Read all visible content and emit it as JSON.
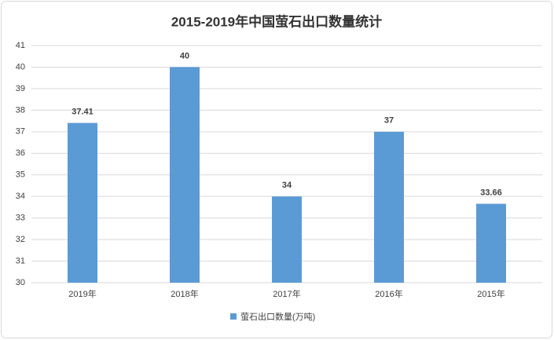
{
  "chart_data": {
    "type": "bar",
    "title": "2015-2019年中国萤石出口数量统计",
    "categories": [
      "2019年",
      "2018年",
      "2017年",
      "2016年",
      "2015年"
    ],
    "series": [
      {
        "name": "萤石出口数量(万吨)",
        "color": "#5b9bd5",
        "values": [
          37.41,
          40,
          34,
          37,
          33.66
        ]
      }
    ],
    "ylim": [
      30,
      41
    ],
    "yticks": [
      30,
      31,
      32,
      33,
      34,
      35,
      36,
      37,
      38,
      39,
      40,
      41
    ],
    "grid": true,
    "legend": "bottom"
  }
}
